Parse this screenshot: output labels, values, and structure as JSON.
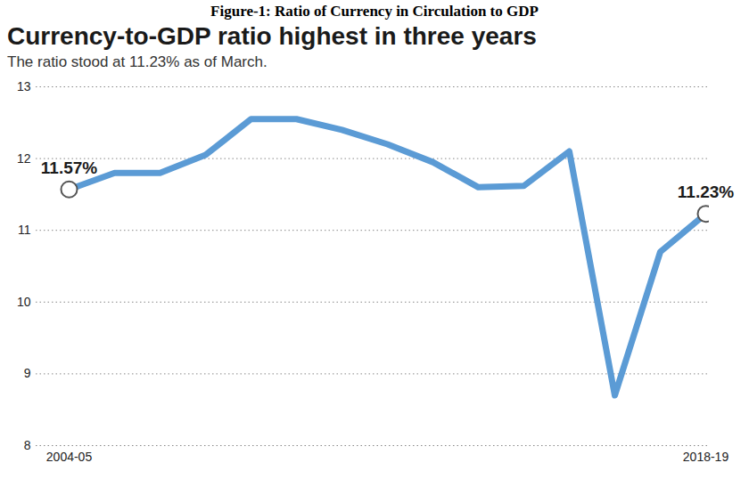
{
  "chart_data": {
    "type": "line",
    "figure_title": "Figure-1: Ratio of Currency in Circulation to GDP",
    "title": "Currency-to-GDP ratio highest in three years",
    "subtitle": "The ratio stood at 11.23% as of March.",
    "categories": [
      "2004-05",
      null,
      null,
      null,
      null,
      null,
      null,
      null,
      null,
      null,
      null,
      null,
      null,
      null,
      "2018-19"
    ],
    "values": [
      11.57,
      11.8,
      11.8,
      12.05,
      12.55,
      12.55,
      12.4,
      12.2,
      11.95,
      11.6,
      11.62,
      12.1,
      8.7,
      10.7,
      11.23
    ],
    "value_labels": [
      "11.57%",
      null,
      null,
      null,
      null,
      null,
      null,
      null,
      null,
      null,
      null,
      null,
      null,
      null,
      "11.23%"
    ],
    "color": "#5b9bd5",
    "marker": "circle",
    "ylim": [
      8,
      13
    ],
    "yticks": [
      8,
      9,
      10,
      11,
      12,
      13
    ],
    "grid": true
  }
}
